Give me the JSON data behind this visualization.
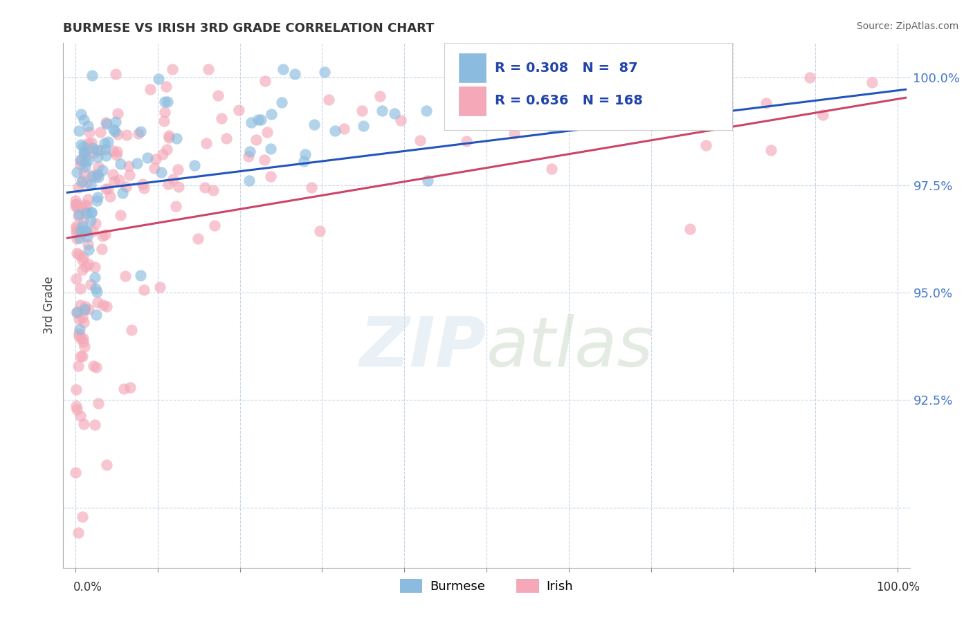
{
  "title": "BURMESE VS IRISH 3RD GRADE CORRELATION CHART",
  "source": "Source: ZipAtlas.com",
  "ylabel": "3rd Grade",
  "y_ticks": [
    0.9,
    0.925,
    0.95,
    0.975,
    1.0
  ],
  "y_tick_labels": [
    "",
    "92.5%",
    "95.0%",
    "97.5%",
    "100.0%"
  ],
  "burmese_color": "#8bbcdf",
  "irish_color": "#f4a8b8",
  "trend_blue": "#2255bb",
  "trend_pink": "#cc4466",
  "R_burmese": 0.308,
  "N_burmese": 87,
  "R_irish": 0.636,
  "N_irish": 168,
  "legend_label_burmese": "Burmese",
  "legend_label_irish": "Irish",
  "watermark_zip": "ZIP",
  "watermark_atlas": "atlas",
  "background_color": "#ffffff",
  "grid_color": "#c8d4e8",
  "xlim": [
    -0.015,
    1.015
  ],
  "ylim": [
    0.886,
    1.008
  ]
}
